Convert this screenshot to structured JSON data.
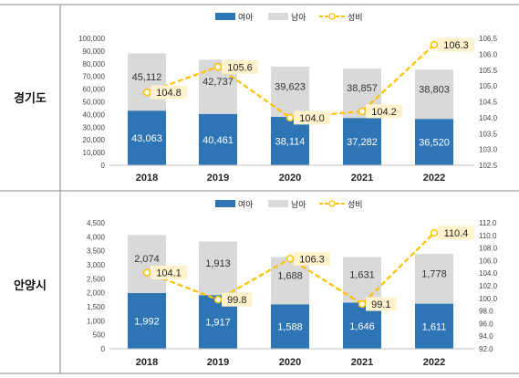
{
  "colors": {
    "girls": "#2E75B6",
    "boys": "#D9D9D9",
    "ratio": "#FFC000",
    "ratio_label_bg": "#FFF2CC"
  },
  "legend": {
    "girls": "여아",
    "boys": "남아",
    "ratio": "성비"
  },
  "chart_data": [
    {
      "type": "bar",
      "region": "경기도",
      "categories": [
        "2018",
        "2019",
        "2020",
        "2021",
        "2022"
      ],
      "series": [
        {
          "name": "여아",
          "kind": "stacked-bar",
          "values": [
            43063,
            40461,
            38114,
            37282,
            36520
          ],
          "labels": [
            "43,063",
            "40,461",
            "38,114",
            "37,282",
            "36,520"
          ]
        },
        {
          "name": "남아",
          "kind": "stacked-bar",
          "values": [
            45112,
            42737,
            39623,
            38857,
            38803
          ],
          "labels": [
            "45,112",
            "42,737",
            "39,623",
            "38,857",
            "38,803"
          ]
        },
        {
          "name": "성비",
          "kind": "line",
          "axis": "right",
          "values": [
            104.8,
            105.6,
            104.0,
            104.2,
            106.3
          ],
          "labels": [
            "104.8",
            "105.6",
            "104.0",
            "104.2",
            "106.3"
          ]
        }
      ],
      "ylim_left": [
        0,
        100000
      ],
      "yticks_left": [
        "100,000",
        "90,000",
        "80,000",
        "70,000",
        "60,000",
        "50,000",
        "40,000",
        "30,000",
        "20,000",
        "10,000",
        "0"
      ],
      "ylim_right": [
        102.5,
        106.5
      ],
      "yticks_right": [
        "106.5",
        "106.0",
        "105.5",
        "105.0",
        "104.5",
        "104.0",
        "103.5",
        "103.0",
        "102.5"
      ],
      "legend_position": "top-center",
      "grid": false
    },
    {
      "type": "bar",
      "region": "안양시",
      "categories": [
        "2018",
        "2019",
        "2020",
        "2021",
        "2022"
      ],
      "series": [
        {
          "name": "여아",
          "kind": "stacked-bar",
          "values": [
            1992,
            1917,
            1588,
            1646,
            1611
          ],
          "labels": [
            "1,992",
            "1,917",
            "1,588",
            "1,646",
            "1,611"
          ]
        },
        {
          "name": "남아",
          "kind": "stacked-bar",
          "values": [
            2074,
            1913,
            1688,
            1631,
            1778
          ],
          "labels": [
            "2,074",
            "1,913",
            "1,688",
            "1,631",
            "1,778"
          ]
        },
        {
          "name": "성비",
          "kind": "line",
          "axis": "right",
          "values": [
            104.1,
            99.8,
            106.3,
            99.1,
            110.4
          ],
          "labels": [
            "104.1",
            "99.8",
            "106.3",
            "99.1",
            "110.4"
          ]
        }
      ],
      "ylim_left": [
        0,
        4500
      ],
      "yticks_left": [
        "4,500",
        "4,000",
        "3,500",
        "3,000",
        "2,500",
        "2,000",
        "1,500",
        "1,000",
        "500",
        "0"
      ],
      "ylim_right": [
        92,
        112
      ],
      "yticks_right": [
        "112.0",
        "110.0",
        "108.0",
        "106.0",
        "104.0",
        "102.0",
        "100.0",
        "98.0",
        "96.0",
        "94.0",
        "92.0"
      ],
      "legend_position": "top-center",
      "grid": false
    }
  ]
}
